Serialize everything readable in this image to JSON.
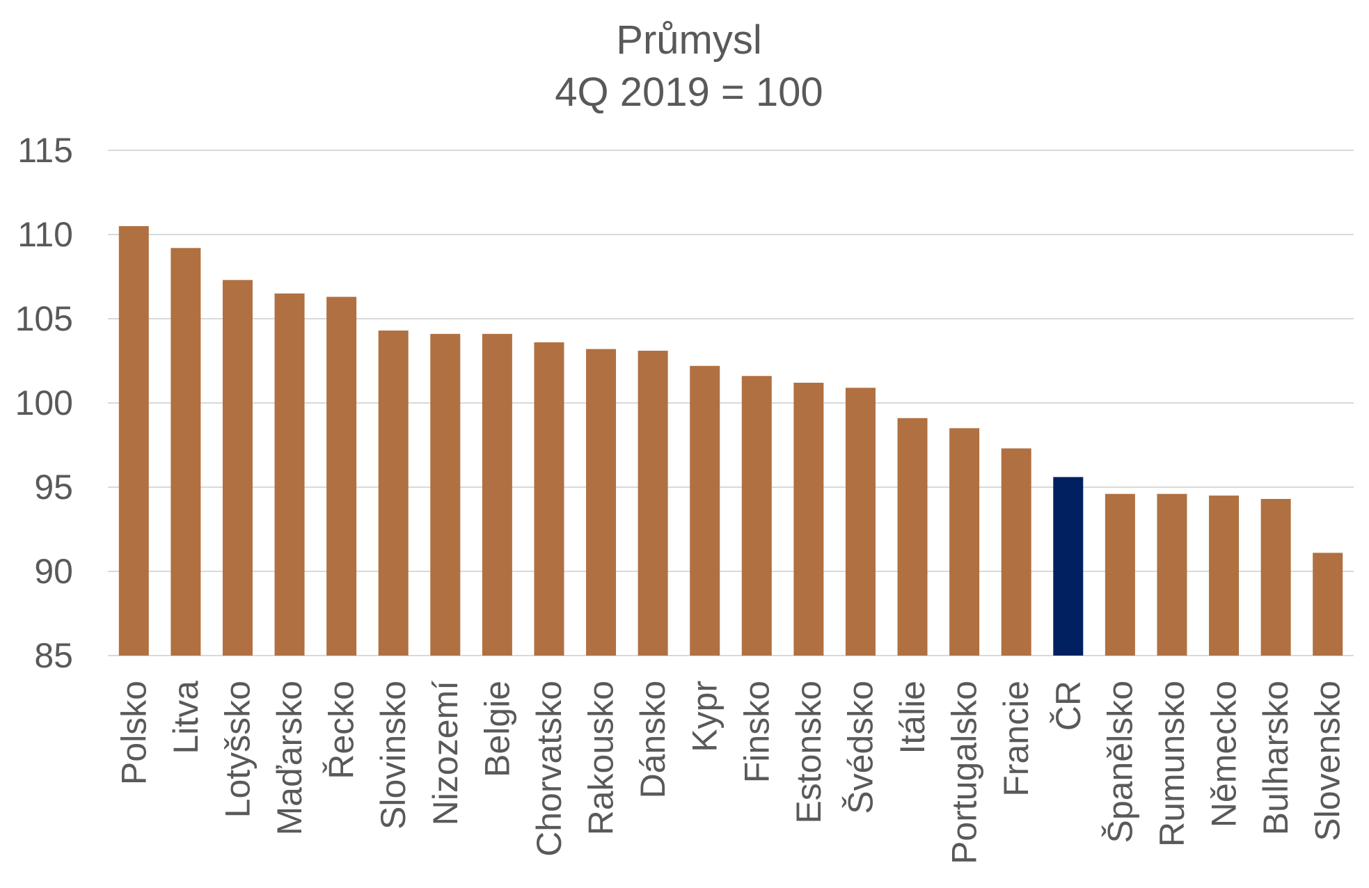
{
  "chart_data": {
    "type": "bar",
    "title": "Průmysl",
    "subtitle": "4Q 2019 = 100",
    "xlabel": "",
    "ylabel": "",
    "ylim": [
      85,
      115
    ],
    "yticks": [
      85,
      90,
      95,
      100,
      105,
      110,
      115
    ],
    "grid": true,
    "legend": "none",
    "categories": [
      "Polsko",
      "Litva",
      "Lotyšsko",
      "Maďarsko",
      "Řecko",
      "Slovinsko",
      "Nizozemí",
      "Belgie",
      "Chorvatsko",
      "Rakousko",
      "Dánsko",
      "Kypr",
      "Finsko",
      "Estonsko",
      "Švédsko",
      "Itálie",
      "Portugalsko",
      "Francie",
      "ČR",
      "Španělsko",
      "Rumunsko",
      "Německo",
      "Bulharsko",
      "Slovensko"
    ],
    "values": [
      110.5,
      109.2,
      107.3,
      106.5,
      106.3,
      104.3,
      104.1,
      104.1,
      103.6,
      103.2,
      103.1,
      102.2,
      101.6,
      101.2,
      100.9,
      99.1,
      98.5,
      97.3,
      95.6,
      94.6,
      94.6,
      94.5,
      94.3,
      91.1
    ],
    "highlight_category": "ČR",
    "colors": {
      "bar": "#B07042",
      "highlight": "#002060",
      "text": "#595959",
      "grid": "#D9D9D9"
    }
  }
}
